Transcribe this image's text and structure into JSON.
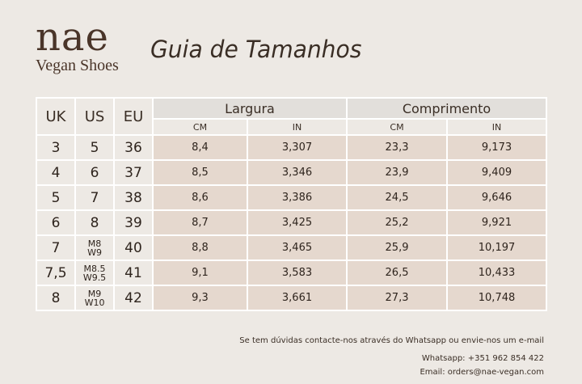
{
  "brand": {
    "name": "nae",
    "subtitle": "Vegan Shoes"
  },
  "title": "Guia de Tamanhos",
  "table": {
    "col_uk": "UK",
    "col_us": "US",
    "col_eu": "EU",
    "group_width": "Largura",
    "group_length": "Comprimento",
    "unit_cm": "CM",
    "unit_in": "IN",
    "rows": [
      {
        "uk": "3",
        "us": "5",
        "us_multi": false,
        "eu": "36",
        "w_cm": "8,4",
        "w_in": "3,307",
        "l_cm": "23,3",
        "l_in": "9,173"
      },
      {
        "uk": "4",
        "us": "6",
        "us_multi": false,
        "eu": "37",
        "w_cm": "8,5",
        "w_in": "3,346",
        "l_cm": "23,9",
        "l_in": "9,409"
      },
      {
        "uk": "5",
        "us": "7",
        "us_multi": false,
        "eu": "38",
        "w_cm": "8,6",
        "w_in": "3,386",
        "l_cm": "24,5",
        "l_in": "9,646"
      },
      {
        "uk": "6",
        "us": "8",
        "us_multi": false,
        "eu": "39",
        "w_cm": "8,7",
        "w_in": "3,425",
        "l_cm": "25,2",
        "l_in": "9,921"
      },
      {
        "uk": "7",
        "us": [
          "M8",
          "W9"
        ],
        "us_multi": true,
        "eu": "40",
        "w_cm": "8,8",
        "w_in": "3,465",
        "l_cm": "25,9",
        "l_in": "10,197"
      },
      {
        "uk": "7,5",
        "us": [
          "M8.5",
          "W9.5"
        ],
        "us_multi": true,
        "eu": "41",
        "w_cm": "9,1",
        "w_in": "3,583",
        "l_cm": "26,5",
        "l_in": "10,433"
      },
      {
        "uk": "8",
        "us": [
          "M9",
          "W10"
        ],
        "us_multi": true,
        "eu": "42",
        "w_cm": "9,3",
        "w_in": "3,661",
        "l_cm": "27,3",
        "l_in": "10,748"
      }
    ]
  },
  "footer": {
    "contact_text": "Se tem dúvidas contacte-nos através do Whatsapp ou envie-nos um e-mail",
    "whatsapp": "Whatsapp: +351 962 854 422",
    "email": "Email: orders@nae-vegan.com"
  }
}
